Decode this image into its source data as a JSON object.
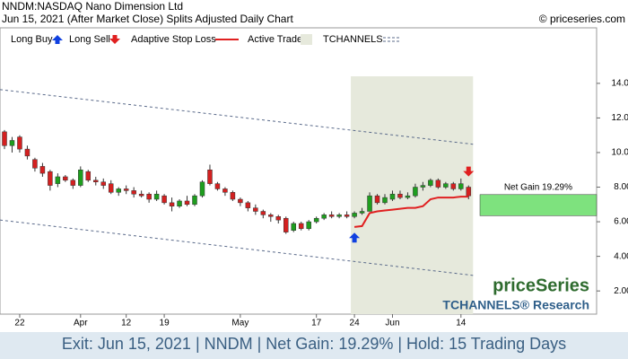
{
  "chart_data": {
    "type": "candlestick",
    "title": "NNDM:NASDAQ Nano Dimension Ltd",
    "subtitle": "Jun 15, 2021 (After Market Close)  Splits Adjusted Daily Chart",
    "credit": "© priceseries.com",
    "categories": [
      null,
      null,
      "22",
      null,
      null,
      null,
      null,
      null,
      null,
      null,
      "Apr",
      null,
      null,
      null,
      null,
      null,
      "12",
      null,
      null,
      null,
      null,
      "19",
      null,
      null,
      null,
      null,
      null,
      null,
      null,
      null,
      null,
      "May",
      null,
      null,
      null,
      null,
      null,
      null,
      null,
      null,
      null,
      "17",
      null,
      null,
      null,
      null,
      "24",
      null,
      null,
      null,
      null,
      "Jun",
      null,
      null,
      null,
      null,
      null,
      null,
      null,
      null,
      "14",
      null
    ],
    "ohlc": [
      [
        11.2,
        11.3,
        10.2,
        10.4
      ],
      [
        10.4,
        10.9,
        10.0,
        10.7
      ],
      [
        10.9,
        11.0,
        10.0,
        10.2
      ],
      [
        10.2,
        10.4,
        9.6,
        9.8
      ],
      [
        9.6,
        9.7,
        8.9,
        9.1
      ],
      [
        9.2,
        9.4,
        8.6,
        8.8
      ],
      [
        8.9,
        9.0,
        7.8,
        8.1
      ],
      [
        8.2,
        8.8,
        8.0,
        8.6
      ],
      [
        8.6,
        8.7,
        8.3,
        8.4
      ],
      [
        8.4,
        8.5,
        7.9,
        8.1
      ],
      [
        8.1,
        9.2,
        8.0,
        9.0
      ],
      [
        8.9,
        9.0,
        8.3,
        8.4
      ],
      [
        8.4,
        8.6,
        8.1,
        8.3
      ],
      [
        8.3,
        8.5,
        7.9,
        8.1
      ],
      [
        8.2,
        8.4,
        7.6,
        7.7
      ],
      [
        7.7,
        8.0,
        7.5,
        7.9
      ],
      [
        7.9,
        8.1,
        7.6,
        7.8
      ],
      [
        7.8,
        8.0,
        7.4,
        7.6
      ],
      [
        7.6,
        7.8,
        7.4,
        7.5
      ],
      [
        7.6,
        7.7,
        7.1,
        7.3
      ],
      [
        7.3,
        7.8,
        7.2,
        7.6
      ],
      [
        7.5,
        7.6,
        7.0,
        7.1
      ],
      [
        7.1,
        7.4,
        6.6,
        6.9
      ],
      [
        6.9,
        7.3,
        6.8,
        7.2
      ],
      [
        7.2,
        7.5,
        6.9,
        7.0
      ],
      [
        7.0,
        7.6,
        6.9,
        7.5
      ],
      [
        7.5,
        8.4,
        7.4,
        8.3
      ],
      [
        9.0,
        9.3,
        8.1,
        8.2
      ],
      [
        8.2,
        8.3,
        7.8,
        7.9
      ],
      [
        7.9,
        8.0,
        7.5,
        7.7
      ],
      [
        7.7,
        7.8,
        7.2,
        7.3
      ],
      [
        7.3,
        7.4,
        6.9,
        7.1
      ],
      [
        7.1,
        7.2,
        6.6,
        6.8
      ],
      [
        6.8,
        7.0,
        6.4,
        6.6
      ],
      [
        6.6,
        6.7,
        6.2,
        6.4
      ],
      [
        6.4,
        6.5,
        6.0,
        6.3
      ],
      [
        6.3,
        6.4,
        5.9,
        6.1
      ],
      [
        6.2,
        6.3,
        5.3,
        5.4
      ],
      [
        5.5,
        6.0,
        5.4,
        5.9
      ],
      [
        5.9,
        6.0,
        5.5,
        5.6
      ],
      [
        5.6,
        6.1,
        5.5,
        6.0
      ],
      [
        6.0,
        6.3,
        5.9,
        6.2
      ],
      [
        6.2,
        6.5,
        6.1,
        6.4
      ],
      [
        6.4,
        6.6,
        6.2,
        6.3
      ],
      [
        6.3,
        6.5,
        6.2,
        6.4
      ],
      [
        6.4,
        6.6,
        6.2,
        6.3
      ],
      [
        6.3,
        6.6,
        6.2,
        6.5
      ],
      [
        6.5,
        6.8,
        6.4,
        6.6
      ],
      [
        6.6,
        7.7,
        6.6,
        7.5
      ],
      [
        7.5,
        7.6,
        7.0,
        7.1
      ],
      [
        7.1,
        7.6,
        7.0,
        7.4
      ],
      [
        7.3,
        7.8,
        7.2,
        7.6
      ],
      [
        7.6,
        7.8,
        7.3,
        7.4
      ],
      [
        7.4,
        7.7,
        7.3,
        7.5
      ],
      [
        7.5,
        8.2,
        7.4,
        8.0
      ],
      [
        8.0,
        8.3,
        7.8,
        8.1
      ],
      [
        8.1,
        8.5,
        8.0,
        8.4
      ],
      [
        8.4,
        8.5,
        7.9,
        8.0
      ],
      [
        8.0,
        8.3,
        7.9,
        8.2
      ],
      [
        8.2,
        8.3,
        7.8,
        7.9
      ],
      [
        7.9,
        8.5,
        7.8,
        8.2
      ],
      [
        8.0,
        8.1,
        7.3,
        7.5
      ]
    ],
    "up_color": "#1e9e1e",
    "down_color": "#d42020",
    "ylim": [
      0.66,
      17.21
    ],
    "yticks": [
      {
        "value": 2,
        "label": "2.00"
      },
      {
        "value": 4,
        "label": "4.00"
      },
      {
        "value": 6,
        "label": "6.00"
      },
      {
        "value": 8,
        "label": "8.00"
      },
      {
        "value": 10,
        "label": "10.00"
      },
      {
        "value": 12,
        "label": "12.00"
      },
      {
        "value": 14,
        "label": "14.00"
      }
    ],
    "buy_signal": {
      "name": "Long Buy",
      "color": "#1040e0"
    },
    "sell_signal": {
      "name": "Long Sell",
      "color": "#e02020"
    },
    "stop_loss": {
      "name": "Adaptive Stop Loss",
      "color": "#e02020",
      "values": [
        null,
        null,
        null,
        null,
        null,
        null,
        null,
        null,
        null,
        null,
        null,
        null,
        null,
        null,
        null,
        null,
        null,
        null,
        null,
        null,
        null,
        null,
        null,
        null,
        null,
        null,
        null,
        null,
        null,
        null,
        null,
        null,
        null,
        null,
        null,
        null,
        null,
        null,
        null,
        null,
        null,
        null,
        null,
        null,
        null,
        null,
        5.7,
        5.75,
        6.5,
        6.6,
        6.65,
        6.7,
        6.75,
        6.8,
        6.8,
        6.9,
        7.3,
        7.4,
        7.4,
        7.4,
        7.45,
        7.45
      ]
    },
    "active_trade": {
      "name": "Active Trade",
      "color": "#e6e9dc"
    },
    "channels": {
      "name": "TCHANNELS",
      "color": "#5a6a8a",
      "upper": [
        13.64,
        10.48
      ],
      "lower": [
        6.1,
        2.9
      ]
    },
    "net_gain": {
      "label": "Net Gain 19.29%",
      "entry": 6.35,
      "exit": 7.57,
      "color": "#7ee27e"
    },
    "watermark": "priceSeries",
    "research": "TCHANNELS® Research",
    "footer": "Exit: Jun 15, 2021 | NNDM | Net Gain: 19.29% | Hold: 15 Trading Days"
  }
}
